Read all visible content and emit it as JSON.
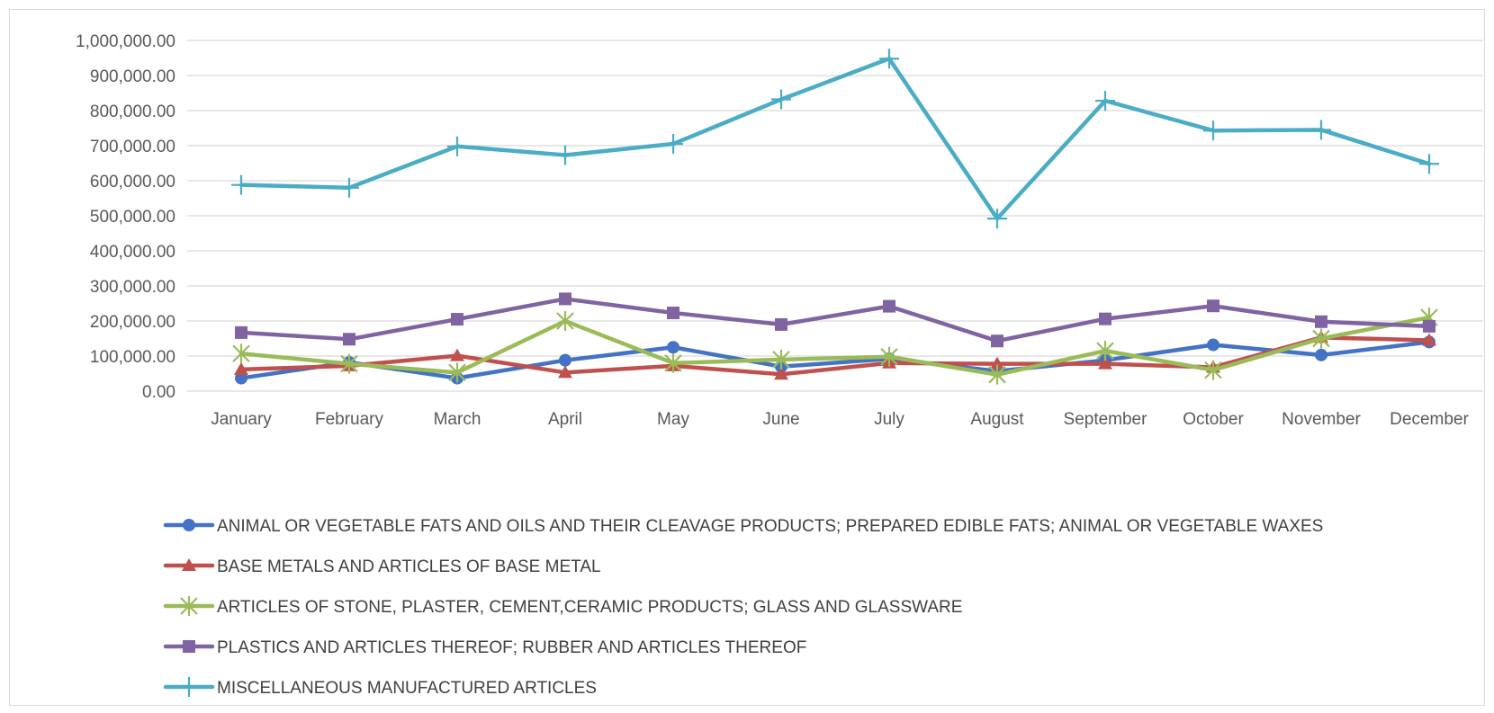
{
  "chart_data": {
    "type": "line",
    "title": "",
    "xlabel": "",
    "ylabel": "",
    "categories": [
      "January",
      "February",
      "March",
      "April",
      "May",
      "June",
      "July",
      "August",
      "September",
      "October",
      "November",
      "December"
    ],
    "ylim": [
      0,
      1000000
    ],
    "y_ticks": [
      "0.00",
      "100,000.00",
      "200,000.00",
      "300,000.00",
      "400,000.00",
      "500,000.00",
      "600,000.00",
      "700,000.00",
      "800,000.00",
      "900,000.00",
      "1,000,000.00"
    ],
    "grid": true,
    "legend_position": "bottom",
    "series": [
      {
        "name": "ANIMAL OR VEGETABLE FATS AND OILS AND THEIR CLEAVAGE PRODUCTS; PREPARED EDIBLE FATS; ANIMAL OR VEGETABLE WAXES",
        "color": "#4472C4",
        "marker": "circle",
        "values": [
          37000,
          82000,
          37000,
          88000,
          125000,
          70000,
          92000,
          57000,
          88000,
          132000,
          103000,
          140000
        ]
      },
      {
        "name": "BASE METALS AND ARTICLES OF BASE METAL",
        "color": "#C0504D",
        "marker": "triangle",
        "values": [
          62000,
          72000,
          101000,
          53000,
          72000,
          48000,
          80000,
          78000,
          78000,
          68000,
          153000,
          145000
        ]
      },
      {
        "name": "ARTICLES OF STONE, PLASTER, CEMENT,CERAMIC PRODUCTS; GLASS AND GLASSWARE",
        "color": "#9BBB59",
        "marker": "star",
        "values": [
          107000,
          78000,
          53000,
          200000,
          80000,
          90000,
          98000,
          47000,
          115000,
          60000,
          150000,
          210000
        ]
      },
      {
        "name": "PLASTICS AND ARTICLES THEREOF; RUBBER AND ARTICLES THEREOF",
        "color": "#8064A2",
        "marker": "square",
        "values": [
          167000,
          148000,
          205000,
          263000,
          223000,
          190000,
          242000,
          143000,
          206000,
          243000,
          198000,
          185000
        ]
      },
      {
        "name": "MISCELLANEOUS MANUFACTURED ARTICLES",
        "color": "#4BACC6",
        "marker": "plus",
        "values": [
          588000,
          580000,
          698000,
          673000,
          705000,
          832000,
          948000,
          492000,
          828000,
          743000,
          745000,
          648000
        ]
      }
    ]
  }
}
